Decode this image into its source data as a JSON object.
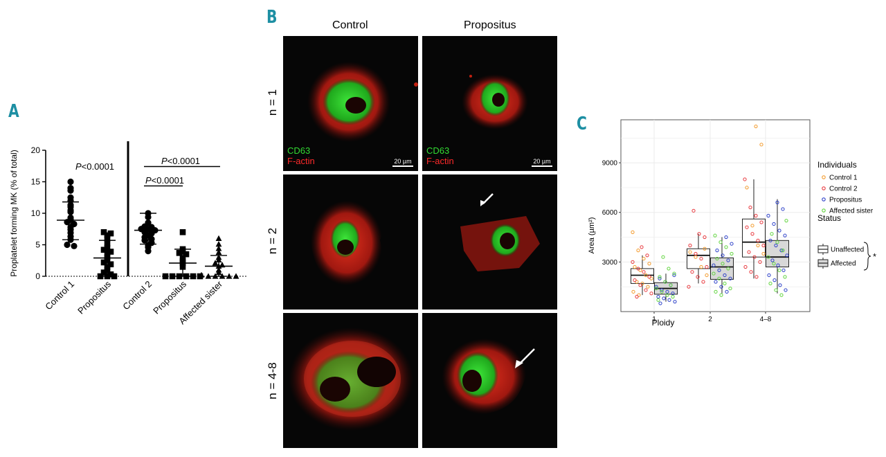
{
  "panels": {
    "a": "A",
    "b": "B",
    "c": "C"
  },
  "panel_a": {
    "ylabel": "Proplatelet forming MK (% of total)",
    "yticks": [
      0,
      5,
      10,
      15,
      20
    ],
    "categories": [
      "Control 1",
      "Propositus",
      "Control 2",
      "Propositus",
      "Affected sister"
    ],
    "pvalue1": "<0.0001",
    "pvalue2": "<0.0001",
    "pvalue3": "<0.0001",
    "p_letter": "P"
  },
  "panel_b": {
    "col_control": "Control",
    "col_propositus": "Propositus",
    "row1": "n = 1",
    "row2": "n = 2",
    "row3": "n = 4-8",
    "stain_green": "CD63",
    "stain_red": "F-actin",
    "scale": "20 µm"
  },
  "panel_c": {
    "ylabel": "Area (µm²)",
    "xlabel": "Ploidy",
    "xcats": [
      "1",
      "2",
      "4–8"
    ],
    "yticks": [
      3000,
      6000,
      9000
    ],
    "legend_individuals_title": "Individuals",
    "legend_individuals": [
      {
        "name": "Control 1",
        "color": "#f39a2b"
      },
      {
        "name": "Control 2",
        "color": "#e8383d"
      },
      {
        "name": "Propositus",
        "color": "#2b3fc8"
      },
      {
        "name": "Affected sister",
        "color": "#5fd43c"
      }
    ],
    "legend_status_title": "Status",
    "legend_status": [
      {
        "name": "Unaffected",
        "fill": "#ffffff"
      },
      {
        "name": "Affected",
        "fill": "#d8d8d8"
      }
    ],
    "signif": "*"
  },
  "chart_data": [
    {
      "type": "scatter",
      "ylabel": "Proplatelet forming MK (% of total)",
      "ylim": [
        0,
        20
      ],
      "categories": [
        "Control 1",
        "Propositus",
        "Control 2",
        "Propositus",
        "Affected sister"
      ],
      "series": [
        {
          "values": [
            15,
            14,
            13.6,
            12.5,
            12,
            11.3,
            11,
            10.5,
            10.2,
            9.3,
            9,
            8.6,
            8.3,
            7.8,
            7.4,
            6.9,
            6.3,
            5.8,
            5,
            4.8
          ]
        },
        {
          "values": [
            7,
            6.8,
            6.5,
            6,
            5.2,
            4.5,
            4.2,
            3.9,
            3.6,
            3,
            2.6,
            2.2,
            1.9,
            1.4,
            1,
            0.6,
            0.3,
            0,
            0,
            0
          ]
        },
        {
          "values": [
            10,
            9.4,
            8.5,
            7.9,
            7.8,
            7.5,
            7.5,
            7.3,
            7,
            6.8,
            6.5,
            6.2,
            5.9,
            5.7,
            5.3,
            4.9,
            4.6,
            4
          ]
        },
        {
          "values": [
            7,
            4.3,
            4,
            3.7,
            3.5,
            2.8,
            2.4,
            2.1,
            1.5,
            0,
            0,
            0,
            0,
            0,
            0
          ]
        },
        {
          "values": [
            6,
            5.1,
            4.4,
            3.8,
            3,
            2.6,
            2.1,
            1.8,
            1.6,
            1,
            0.6,
            0.2,
            0,
            0,
            0,
            0,
            0
          ]
        }
      ],
      "summary": [
        {
          "mean": 8.9,
          "sd_low": 5.8,
          "sd_high": 11.8
        },
        {
          "mean": 2.9,
          "sd_low": 0,
          "sd_high": 5.7
        },
        {
          "mean": 7.3,
          "sd_low": 5.1,
          "sd_high": 10
        },
        {
          "mean": 2.1,
          "sd_low": 0,
          "sd_high": 4.3
        },
        {
          "mean": 1.6,
          "sd_low": 0,
          "sd_high": 3.3
        }
      ]
    },
    {
      "type": "box",
      "xlabel": "Ploidy",
      "ylabel": "Area (µm²)",
      "ylim": [
        0,
        11600
      ],
      "categories": [
        "1",
        "2",
        "4–8"
      ],
      "boxes": [
        {
          "ploidy": "1",
          "status": "Unaffected",
          "q1": 1700,
          "median": 2200,
          "q3": 2600,
          "low": 1000,
          "high": 3400
        },
        {
          "ploidy": "1",
          "status": "Affected",
          "q1": 1050,
          "median": 1400,
          "q3": 1750,
          "low": 600,
          "high": 2300
        },
        {
          "ploidy": "2",
          "status": "Unaffected",
          "q1": 2600,
          "median": 3400,
          "q3": 3800,
          "low": 1700,
          "high": 4700
        },
        {
          "ploidy": "2",
          "status": "Affected",
          "q1": 1950,
          "median": 2700,
          "q3": 3250,
          "low": 1100,
          "high": 4500
        },
        {
          "ploidy": "4–8",
          "status": "Unaffected",
          "q1": 3300,
          "median": 4200,
          "q3": 5600,
          "low": 2000,
          "high": 8000
        },
        {
          "ploidy": "4–8",
          "status": "Affected",
          "q1": 2700,
          "median": 3300,
          "q3": 4300,
          "low": 1100,
          "high": 6800
        }
      ],
      "points": [
        {
          "c": 0,
          "group": "1",
          "status": "Unaffected",
          "values": [
            4800,
            3700,
            3200,
            2900,
            2700,
            2500,
            2200,
            2000,
            1800,
            1700,
            1500,
            1200,
            1000
          ]
        },
        {
          "c": 1,
          "group": "1",
          "status": "Unaffected",
          "values": [
            3900,
            3400,
            3000,
            2600,
            2400,
            2100,
            1900,
            1600,
            1300,
            1100,
            900
          ]
        },
        {
          "c": 2,
          "group": "1",
          "status": "Affected",
          "values": [
            2200,
            2000,
            1800,
            1600,
            1500,
            1300,
            1200,
            1100,
            900,
            800,
            700,
            600,
            500
          ]
        },
        {
          "c": 3,
          "group": "1",
          "status": "Affected",
          "values": [
            3300,
            2600,
            2300,
            2100,
            1800,
            1600,
            1400,
            1200,
            1000,
            900,
            700
          ]
        },
        {
          "c": 0,
          "group": "2",
          "status": "Unaffected",
          "values": [
            3800,
            3600,
            3300,
            2700,
            2200
          ]
        },
        {
          "c": 1,
          "group": "2",
          "status": "Unaffected",
          "values": [
            6100,
            4700,
            4500,
            4000,
            3500,
            3200,
            2700,
            2400,
            2100,
            1800,
            1500
          ]
        },
        {
          "c": 2,
          "group": "2",
          "status": "Affected",
          "values": [
            4500,
            4100,
            3700,
            3400,
            3100,
            2800,
            2500,
            2200,
            2000,
            1800,
            1500,
            1200
          ]
        },
        {
          "c": 3,
          "group": "2",
          "status": "Affected",
          "values": [
            4600,
            4200,
            3900,
            3500,
            3200,
            2900,
            2600,
            2300,
            2000,
            1700,
            1400,
            1200,
            1000
          ]
        },
        {
          "c": 0,
          "group": "4–8",
          "status": "Unaffected",
          "values": [
            11200,
            10100,
            7500,
            5200,
            4000,
            3500
          ]
        },
        {
          "c": 1,
          "group": "4–8",
          "status": "Unaffected",
          "values": [
            8000,
            6300,
            5800,
            5400,
            5100,
            4700,
            4300,
            4000,
            3600,
            3300,
            3000,
            2700,
            2400,
            2100
          ]
        },
        {
          "c": 2,
          "group": "4–8",
          "status": "Affected",
          "values": [
            6600,
            6200,
            5800,
            5300,
            4900,
            4600,
            4300,
            4000,
            3700,
            3400,
            3100,
            2800,
            2500,
            2200,
            1900,
            1600,
            1300
          ]
        },
        {
          "c": 3,
          "group": "4–8",
          "status": "Affected",
          "values": [
            5500,
            4700,
            4200,
            3700,
            3300,
            2900,
            2500,
            2100,
            1700,
            1300,
            1000
          ]
        }
      ]
    }
  ]
}
